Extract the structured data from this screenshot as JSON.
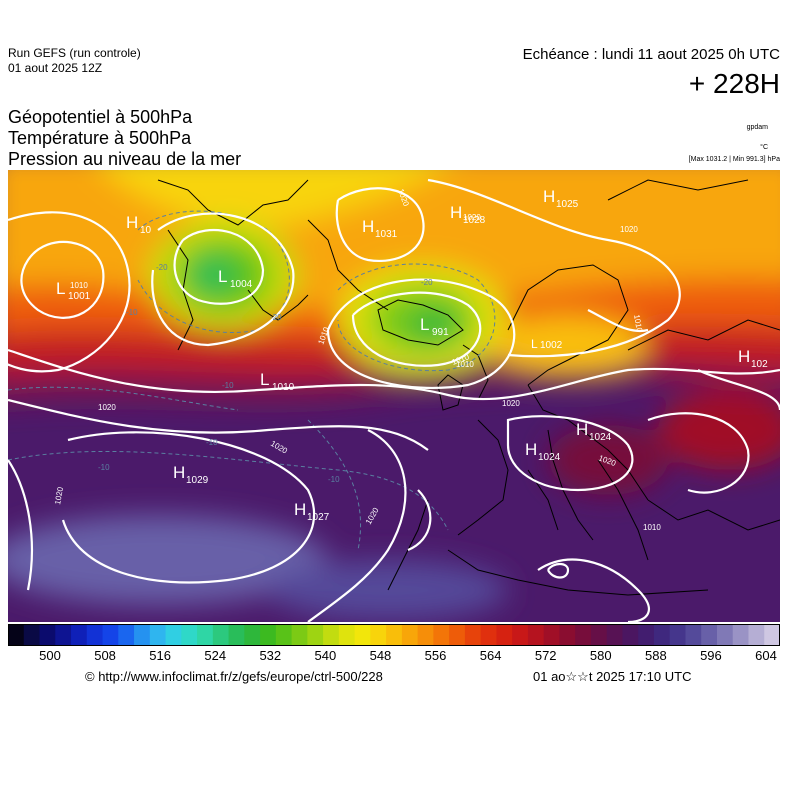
{
  "header": {
    "run_title": "Run GEFS (run controle)",
    "run_date": "01 aout 2025 12Z",
    "echeance": "Echéance : lundi 11 aout 2025 0h UTC",
    "lead_time": "+ 228H"
  },
  "legend": {
    "line1": "Géopotentiel à 500hPa",
    "line2": "Température à 500hPa",
    "line3": "Pression au niveau de la mer",
    "unit1": "gpdam",
    "unit2": "°C",
    "unit3": "[Max 1031.2 | Min 991.3] hPa"
  },
  "colorbar": {
    "ticks": [
      "500",
      "508",
      "516",
      "524",
      "532",
      "540",
      "548",
      "556",
      "564",
      "572",
      "580",
      "588",
      "596",
      "604"
    ],
    "colors": [
      "#050318",
      "#0a0a45",
      "#0b0b6d",
      "#0e1492",
      "#0f20b8",
      "#1232d6",
      "#1444e8",
      "#1a66ef",
      "#2592f0",
      "#2fb5ef",
      "#30cfe3",
      "#2fd8c8",
      "#2fd6a5",
      "#2cc97e",
      "#29bd5a",
      "#2eb73b",
      "#3cba20",
      "#59c218",
      "#7cca15",
      "#9ed412",
      "#c2dc10",
      "#dfe30d",
      "#f2e60b",
      "#f8d40b",
      "#f9be0a",
      "#f8a609",
      "#f68e09",
      "#f37508",
      "#ee5c09",
      "#e7430b",
      "#e0300e",
      "#d62211",
      "#c81818",
      "#b5131f",
      "#a00f27",
      "#8a0d30",
      "#770d3b",
      "#660f47",
      "#571254",
      "#4b1661",
      "#421d6f",
      "#3f287e",
      "#45368c",
      "#544a9a",
      "#6860a8",
      "#8079b6",
      "#9a93c5",
      "#b5aed4",
      "#cfc7e2"
    ]
  },
  "map_labels": {
    "pressure_centers": [
      {
        "t": "H",
        "v": "10"
      },
      {
        "t": "L",
        "v": "1004"
      },
      {
        "t": "H",
        "v": "1031"
      },
      {
        "t": "H",
        "v": "1028"
      },
      {
        "t": "H",
        "v": "1025"
      },
      {
        "t": "L",
        "v": "1001"
      },
      {
        "t": "L",
        "v": "991"
      },
      {
        "t": "L",
        "v": "1010"
      },
      {
        "t": "H",
        "v": "1029"
      },
      {
        "t": "H",
        "v": "1027"
      },
      {
        "t": "H",
        "v": "1024"
      },
      {
        "t": "H",
        "v": "1024"
      },
      {
        "t": "H",
        "v": "102"
      },
      {
        "t": "L",
        "v": "1002"
      }
    ],
    "isobar_values": [
      "1010",
      "1020",
      "1020",
      "1020",
      "1020",
      "1010",
      "1010",
      "1020",
      "1020",
      "1010",
      "1020",
      "1020",
      "1010",
      "1020",
      "1010"
    ],
    "temp_values": [
      "-20",
      "-20",
      "-10",
      "-10",
      "-10",
      "-20",
      "-10",
      "-10"
    ]
  },
  "footer": {
    "url": "© http://www.infoclimat.fr/z/gefs/europe/ctrl-500/228",
    "generated": "01 ao☆☆t 2025 17:10 UTC"
  },
  "colors": {
    "isobar": "#ffffff",
    "temperature_contour": "#5a7fa0",
    "coastline": "#000000"
  }
}
